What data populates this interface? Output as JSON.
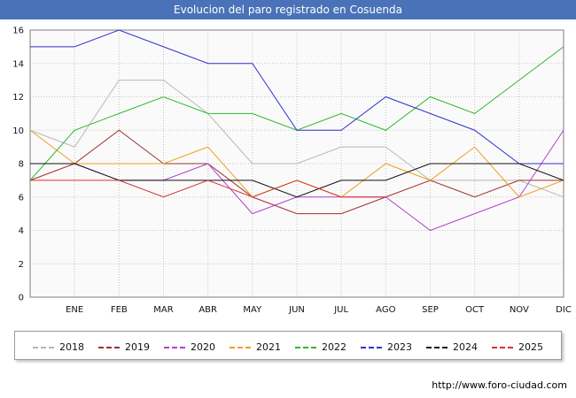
{
  "title": "Evolucion del paro registrado en Cosuenda",
  "title_bar_color": "#4a72b8",
  "footer": {
    "url": "http://www.foro-ciudad.com"
  },
  "chart_data": {
    "type": "line",
    "title": "Evolucion del paro registrado en Cosuenda",
    "xlabel": "",
    "ylabel": "",
    "ylim": [
      0,
      16
    ],
    "ytick_step": 2,
    "grid": true,
    "legend_position": "bottom",
    "plot_bg": "#fafafa",
    "categories": [
      "",
      "ENE",
      "FEB",
      "MAR",
      "ABR",
      "MAY",
      "JUN",
      "JUL",
      "AGO",
      "SEP",
      "OCT",
      "NOV",
      "DIC"
    ],
    "x_note": "first vertex sits on the left axis and is unlabeled",
    "series": [
      {
        "name": "2018",
        "color": "#b8b8b8",
        "values": [
          10,
          9,
          13,
          13,
          11,
          8,
          8,
          9,
          9,
          7,
          7,
          7,
          6
        ]
      },
      {
        "name": "2019",
        "color": "#a03030",
        "values": [
          7,
          8,
          10,
          8,
          8,
          6,
          5,
          5,
          6,
          7,
          6,
          7,
          7
        ]
      },
      {
        "name": "2020",
        "color": "#b040d0",
        "values": [
          8,
          8,
          7,
          7,
          8,
          5,
          6,
          6,
          6,
          4,
          5,
          6,
          10
        ]
      },
      {
        "name": "2021",
        "color": "#eda120",
        "values": [
          10,
          8,
          8,
          8,
          9,
          6,
          7,
          6,
          8,
          7,
          9,
          6,
          7
        ]
      },
      {
        "name": "2022",
        "color": "#30b830",
        "values": [
          7,
          10,
          11,
          12,
          11,
          11,
          10,
          11,
          10,
          12,
          11,
          13,
          15
        ]
      },
      {
        "name": "2023",
        "color": "#3030d0",
        "values": [
          15,
          15,
          16,
          15,
          14,
          14,
          10,
          10,
          12,
          11,
          10,
          8,
          8
        ]
      },
      {
        "name": "2024",
        "color": "#101010",
        "values": [
          8,
          8,
          7,
          7,
          7,
          7,
          6,
          7,
          7,
          8,
          8,
          8,
          7
        ]
      },
      {
        "name": "2025",
        "color": "#d83030",
        "values": [
          7,
          7,
          7,
          6,
          7,
          6,
          7,
          6,
          6
        ]
      }
    ]
  }
}
